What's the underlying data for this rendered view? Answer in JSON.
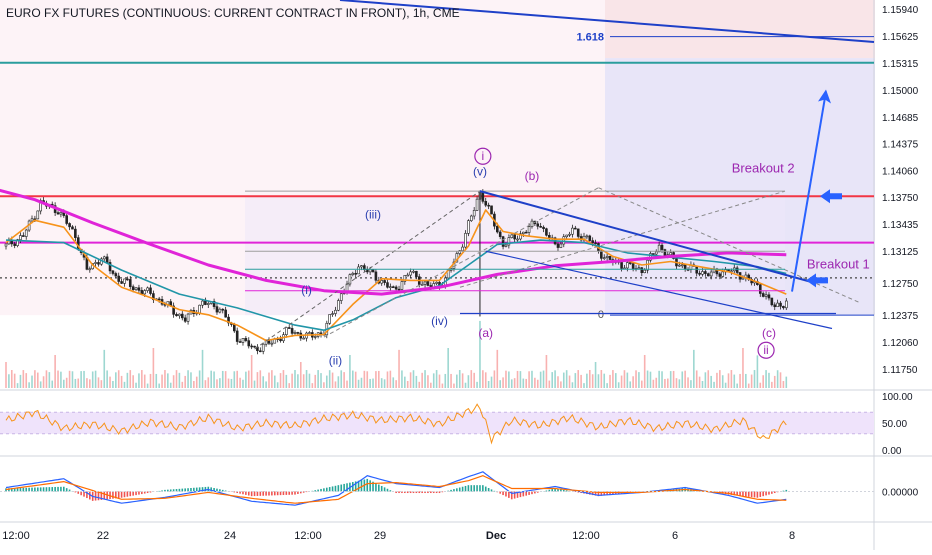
{
  "chart_title": "EURO FX FUTURES (CONTINUOUS: CURRENT CONTRACT IN FRONT), 1h, CME",
  "colors": {
    "candle_up": "#26a69a",
    "candle_down": "#ef5350",
    "ma_orange": "#f7931a",
    "ma_blue": "#2196a8",
    "ma_magenta": "#e024d8",
    "trend_blue": "#1e40c8",
    "wave_label": "#2a3fb0",
    "wave_label_purple": "#9c27b0",
    "hline_red": "#f23645",
    "hline_magenta": "#e024d8",
    "hline_teal": "#2a9d9d",
    "fib_band": "#d6d0f2",
    "pink_band": "#fbe4ef",
    "rsi_line": "#f7931a",
    "rsi_band": "#efe3fb",
    "macd_line": "#2962ff",
    "signal_line": "#ff6d00"
  },
  "chart_data": [
    {
      "type": "candlestick",
      "panel": "price",
      "title": "EURO FX FUTURES (CONTINUOUS: CURRENT CONTRACT IN FRONT), 1h, CME",
      "x_labels": [
        "12:00",
        "22",
        "24",
        "12:00",
        "29",
        "Dec",
        "12:00",
        "6",
        "8"
      ],
      "y_ticks": [
        "1.15940",
        "1.15625",
        "1.15315",
        "1.15000",
        "1.14685",
        "1.14375",
        "1.14060",
        "1.13750",
        "1.13435",
        "1.13125",
        "1.12750",
        "1.12375",
        "1.12060",
        "1.11750"
      ],
      "ylim": [
        1.1155,
        1.16
      ],
      "close_path": [
        [
          0,
          1.1318
        ],
        [
          6,
          1.133
        ],
        [
          12,
          1.1368
        ],
        [
          18,
          1.136
        ],
        [
          24,
          1.133
        ],
        [
          28,
          1.129
        ],
        [
          33,
          1.1305
        ],
        [
          38,
          1.1282
        ],
        [
          44,
          1.127
        ],
        [
          50,
          1.1262
        ],
        [
          56,
          1.1248
        ],
        [
          62,
          1.1232
        ],
        [
          68,
          1.1252
        ],
        [
          74,
          1.1246
        ],
        [
          80,
          1.1212
        ],
        [
          86,
          1.1198
        ],
        [
          92,
          1.1206
        ],
        [
          98,
          1.122
        ],
        [
          104,
          1.1212
        ],
        [
          110,
          1.1218
        ],
        [
          116,
          1.1262
        ],
        [
          122,
          1.1296
        ],
        [
          128,
          1.1282
        ],
        [
          134,
          1.1266
        ],
        [
          140,
          1.1288
        ],
        [
          146,
          1.127
        ],
        [
          152,
          1.1278
        ],
        [
          158,
          1.1322
        ],
        [
          164,
          1.1382
        ],
        [
          168,
          1.1352
        ],
        [
          172,
          1.132
        ],
        [
          178,
          1.1332
        ],
        [
          184,
          1.1346
        ],
        [
          190,
          1.1318
        ],
        [
          196,
          1.1336
        ],
        [
          202,
          1.1325
        ],
        [
          208,
          1.1302
        ],
        [
          214,
          1.1296
        ],
        [
          220,
          1.129
        ],
        [
          226,
          1.1318
        ],
        [
          232,
          1.1298
        ],
        [
          238,
          1.129
        ],
        [
          244,
          1.1285
        ],
        [
          250,
          1.129
        ],
        [
          256,
          1.1282
        ],
        [
          262,
          1.1264
        ],
        [
          266,
          1.1246
        ],
        [
          270,
          1.1254
        ]
      ],
      "series_ma": [
        {
          "color": "#f7931a",
          "points": [
            [
              0,
              1.1322
            ],
            [
              10,
              1.1348
            ],
            [
              20,
              1.134
            ],
            [
              30,
              1.1296
            ],
            [
              40,
              1.127
            ],
            [
              50,
              1.1258
            ],
            [
              60,
              1.1244
            ],
            [
              70,
              1.1238
            ],
            [
              80,
              1.1226
            ],
            [
              90,
              1.1208
            ],
            [
              100,
              1.1214
            ],
            [
              110,
              1.1215
            ],
            [
              120,
              1.125
            ],
            [
              130,
              1.128
            ],
            [
              140,
              1.1278
            ],
            [
              150,
              1.1278
            ],
            [
              160,
              1.1318
            ],
            [
              166,
              1.136
            ],
            [
              172,
              1.1335
            ],
            [
              180,
              1.133
            ],
            [
              190,
              1.1326
            ],
            [
              200,
              1.1326
            ],
            [
              210,
              1.1306
            ],
            [
              220,
              1.1296
            ],
            [
              230,
              1.13
            ],
            [
              240,
              1.1294
            ],
            [
              250,
              1.1288
            ],
            [
              260,
              1.1276
            ],
            [
              270,
              1.1262
            ]
          ]
        },
        {
          "color": "#2196a8",
          "points": [
            [
              0,
              1.1325
            ],
            [
              20,
              1.1322
            ],
            [
              40,
              1.129
            ],
            [
              60,
              1.1262
            ],
            [
              80,
              1.1246
            ],
            [
              100,
              1.1226
            ],
            [
              110,
              1.122
            ],
            [
              120,
              1.1232
            ],
            [
              135,
              1.1258
            ],
            [
              150,
              1.1272
            ],
            [
              160,
              1.1296
            ],
            [
              170,
              1.132
            ],
            [
              185,
              1.1325
            ],
            [
              200,
              1.1322
            ],
            [
              215,
              1.131
            ],
            [
              230,
              1.1305
            ],
            [
              245,
              1.13
            ],
            [
              260,
              1.1294
            ],
            [
              270,
              1.1286
            ]
          ]
        },
        {
          "color": "#e024d8",
          "points": [
            [
              -10,
              1.139
            ],
            [
              10,
              1.1372
            ],
            [
              30,
              1.1345
            ],
            [
              50,
              1.132
            ],
            [
              70,
              1.1296
            ],
            [
              90,
              1.1278
            ],
            [
              110,
              1.1266
            ],
            [
              130,
              1.1262
            ],
            [
              150,
              1.127
            ],
            [
              170,
              1.1285
            ],
            [
              190,
              1.1295
            ],
            [
              210,
              1.13
            ],
            [
              230,
              1.1306
            ],
            [
              250,
              1.131
            ],
            [
              270,
              1.1308
            ]
          ]
        }
      ],
      "horizontal_levels": [
        {
          "value": 1.1562,
          "label": "1.618",
          "color": "#1e40c8"
        },
        {
          "value": 1.15315,
          "label": "",
          "color": "#2a9d9d"
        },
        {
          "value": 1.1376,
          "label": "",
          "color": "#f23645"
        },
        {
          "value": 1.1322,
          "label": "",
          "color": "#e024d8"
        },
        {
          "value": 1.1281,
          "label": "",
          "color": "#444444"
        },
        {
          "value": 1.12375,
          "label": "0",
          "color": "#1e40c8"
        }
      ],
      "annotations": [
        {
          "text": "i",
          "x": 165,
          "value": 1.1418,
          "kind": "circled"
        },
        {
          "text": "(v)",
          "x": 164,
          "value": 1.14,
          "kind": "wave"
        },
        {
          "text": "(b)",
          "x": 182,
          "value": 1.1395,
          "kind": "wave-purple"
        },
        {
          "text": "(iii)",
          "x": 127,
          "value": 1.135,
          "kind": "wave"
        },
        {
          "text": "(i)",
          "x": 104,
          "value": 1.1262,
          "kind": "wave"
        },
        {
          "text": "(iv)",
          "x": 150,
          "value": 1.1226,
          "kind": "wave"
        },
        {
          "text": "(a)",
          "x": 166,
          "value": 1.1212,
          "kind": "wave-purple"
        },
        {
          "text": "(ii)",
          "x": 114,
          "value": 1.118,
          "kind": "wave"
        },
        {
          "text": "(c)",
          "x": 264,
          "value": 1.1212,
          "kind": "wave-purple"
        },
        {
          "text": "ii",
          "x": 263,
          "value": 1.1192,
          "kind": "circled"
        },
        {
          "text": "Breakout 2",
          "x": 262,
          "value": 1.1404,
          "kind": "callout"
        },
        {
          "text": "Breakout 1",
          "x": 288,
          "value": 1.1292,
          "kind": "callout"
        }
      ]
    },
    {
      "type": "line",
      "panel": "rsi",
      "y_ticks": [
        "100.00",
        "50.00",
        "0.00"
      ],
      "ylim": [
        0,
        100
      ],
      "band": [
        30,
        70
      ],
      "values_x": [
        0,
        10,
        20,
        30,
        40,
        50,
        60,
        70,
        80,
        90,
        100,
        110,
        120,
        130,
        140,
        150,
        160,
        164,
        168,
        175,
        185,
        195,
        205,
        215,
        225,
        235,
        245,
        255,
        262,
        266,
        270
      ],
      "values": [
        55,
        70,
        40,
        48,
        35,
        52,
        42,
        60,
        40,
        50,
        45,
        58,
        65,
        55,
        60,
        48,
        72,
        80,
        20,
        55,
        45,
        60,
        42,
        55,
        40,
        50,
        38,
        55,
        20,
        35,
        52
      ]
    },
    {
      "type": "line",
      "panel": "macd",
      "y_ticks": [
        "0.00000"
      ],
      "series": [
        {
          "values_x": [
            0,
            20,
            30,
            40,
            55,
            70,
            85,
            100,
            115,
            125,
            135,
            150,
            160,
            165,
            175,
            190,
            205,
            220,
            235,
            250,
            260,
            270
          ],
          "values": [
            0.0004,
            0.0013,
            -0.0005,
            -0.0012,
            -0.0006,
            0.0002,
            -0.001,
            -0.0014,
            -0.0004,
            0.0016,
            0.0008,
            0.0004,
            0.0015,
            0.002,
            -0.0002,
            0.0005,
            -0.0004,
            -0.0001,
            0.0004,
            -0.0004,
            -0.0012,
            -0.0008
          ]
        },
        {
          "values_x": [
            0,
            20,
            30,
            40,
            55,
            70,
            85,
            100,
            115,
            125,
            135,
            150,
            160,
            165,
            175,
            190,
            205,
            220,
            235,
            250,
            260,
            270
          ],
          "values": [
            0.0002,
            0.001,
            0.0001,
            -0.0008,
            -0.0007,
            -0.0001,
            -0.0007,
            -0.0012,
            -0.0008,
            0.0008,
            0.0009,
            0.0005,
            0.0011,
            0.0016,
            0.0003,
            0.0003,
            -0.0001,
            -0.0001,
            0.0002,
            -0.0002,
            -0.0008,
            -0.0009
          ]
        }
      ],
      "ylim": [
        -0.0025,
        0.003
      ]
    }
  ]
}
